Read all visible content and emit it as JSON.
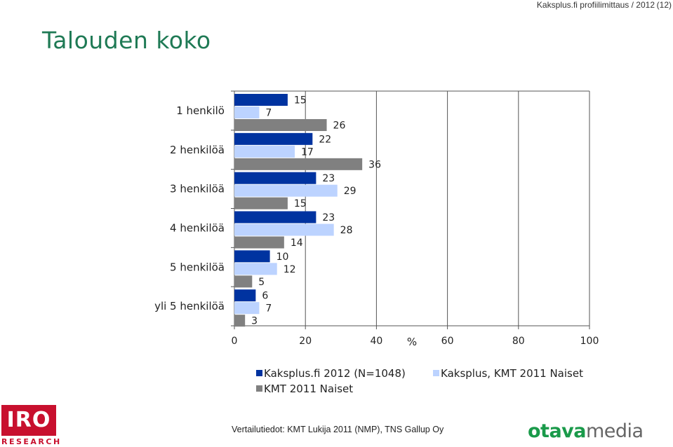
{
  "header": {
    "title": "Kaksplus.fi profiilimittaus / 2012",
    "page": "(12)"
  },
  "page_title": "Talouden koko",
  "chart_data": {
    "type": "bar",
    "orientation": "horizontal",
    "categories": [
      "1 henkilö",
      "2 henkilöä",
      "3 henkilöä",
      "4 henkilöä",
      "5 henkilöä",
      "yli 5 henkilöä"
    ],
    "series": [
      {
        "name": "Kaksplus.fi 2012 (N=1048)",
        "values": [
          15,
          22,
          23,
          23,
          10,
          6
        ],
        "color": "#0033a0"
      },
      {
        "name": "Kaksplus, KMT 2011 Naiset",
        "values": [
          7,
          17,
          29,
          28,
          12,
          7
        ],
        "color": "#bcd3ff"
      },
      {
        "name": "KMT 2011 Naiset",
        "values": [
          26,
          36,
          15,
          14,
          5,
          3
        ],
        "color": "#808080"
      }
    ],
    "xlim": [
      0,
      100
    ],
    "xticks": [
      0,
      20,
      40,
      60,
      80,
      100
    ],
    "xlabel": "%",
    "grid": true,
    "legend_position": "bottom"
  },
  "footer": {
    "source": "Vertailutiedot: KMT Lukija 2011 (NMP), TNS Gallup Oy"
  },
  "logos": {
    "iro_main": "IRO",
    "iro_sub": "RESEARCH",
    "otava_part1": "otava",
    "otava_part2": "media"
  }
}
